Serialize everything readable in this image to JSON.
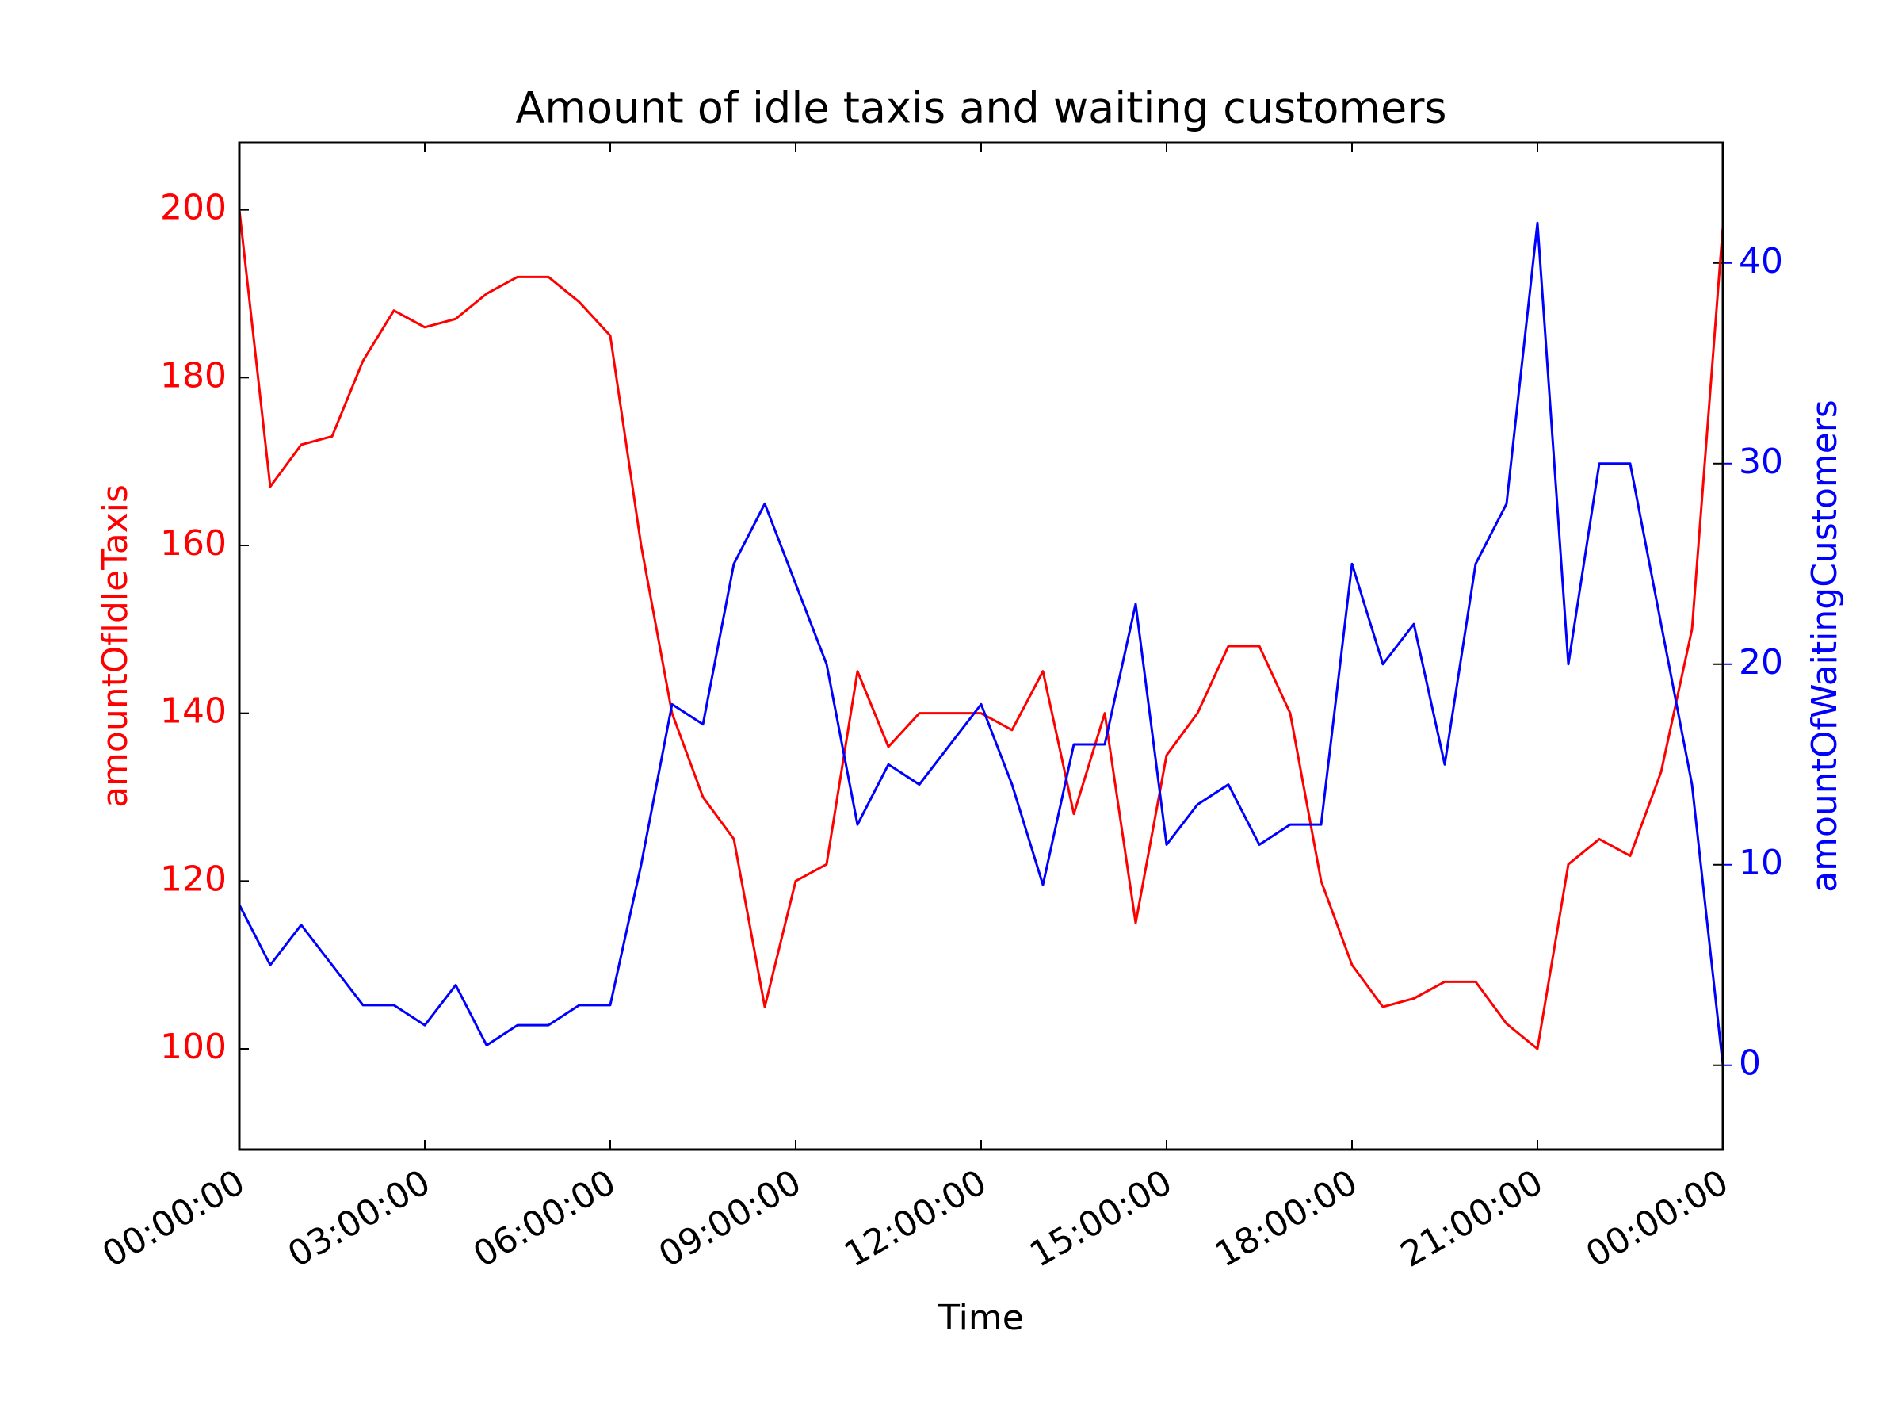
{
  "chart_data": {
    "type": "line",
    "title": "Amount of idle taxis and waiting customers",
    "x_label": "Time",
    "y_label": "amountOfIdleTaxis",
    "y2_label": "amountOfWaitingCustomers",
    "x": [
      0,
      0.5,
      1,
      1.5,
      2,
      2.5,
      3,
      3.5,
      4,
      4.5,
      5,
      5.5,
      6,
      6.5,
      7,
      7.5,
      8,
      8.5,
      9,
      9.5,
      10,
      10.5,
      11,
      11.5,
      12,
      12.5,
      13,
      13.5,
      14,
      14.5,
      15,
      15.5,
      16,
      16.5,
      17,
      17.5,
      18,
      18.5,
      19,
      19.5,
      20,
      20.5,
      21,
      21.5,
      22,
      22.5,
      23,
      23.5,
      24
    ],
    "series": [
      {
        "name": "amountOfIdleTaxis",
        "color": "#ff0000",
        "axis": "y",
        "values": [
          200,
          167,
          172,
          173,
          182,
          188,
          186,
          187,
          190,
          192,
          192,
          189,
          185,
          160,
          140,
          130,
          125,
          105,
          120,
          122,
          145,
          136,
          140,
          140,
          140,
          138,
          145,
          128,
          140,
          115,
          135,
          140,
          148,
          148,
          140,
          120,
          110,
          105,
          106,
          108,
          108,
          103,
          100,
          122,
          125,
          123,
          133,
          150,
          198
        ]
      },
      {
        "name": "amountOfWaitingCustomers",
        "color": "#0000ff",
        "axis": "y2",
        "values": [
          8,
          5,
          7,
          5,
          3,
          3,
          2,
          4,
          1,
          2,
          2,
          3,
          3,
          10,
          18,
          17,
          25,
          28,
          24,
          20,
          12,
          15,
          14,
          16,
          18,
          14,
          9,
          16,
          16,
          23,
          11,
          13,
          14,
          11,
          12,
          12,
          25,
          20,
          22,
          15,
          25,
          28,
          42,
          20,
          30,
          30,
          22,
          14,
          0
        ]
      }
    ],
    "xlim": [
      0,
      24
    ],
    "xticks": [
      {
        "value": 0,
        "label": "00:00:00"
      },
      {
        "value": 3,
        "label": "03:00:00"
      },
      {
        "value": 6,
        "label": "06:00:00"
      },
      {
        "value": 9,
        "label": "09:00:00"
      },
      {
        "value": 12,
        "label": "12:00:00"
      },
      {
        "value": 15,
        "label": "15:00:00"
      },
      {
        "value": 18,
        "label": "18:00:00"
      },
      {
        "value": 21,
        "label": "21:00:00"
      },
      {
        "value": 24,
        "label": "00:00:00"
      }
    ],
    "ylim": [
      88,
      208
    ],
    "yticks": [
      100,
      120,
      140,
      160,
      180,
      200
    ],
    "y2lim": [
      -4.2,
      46
    ],
    "y2ticks": [
      0,
      10,
      20,
      30,
      40
    ]
  }
}
